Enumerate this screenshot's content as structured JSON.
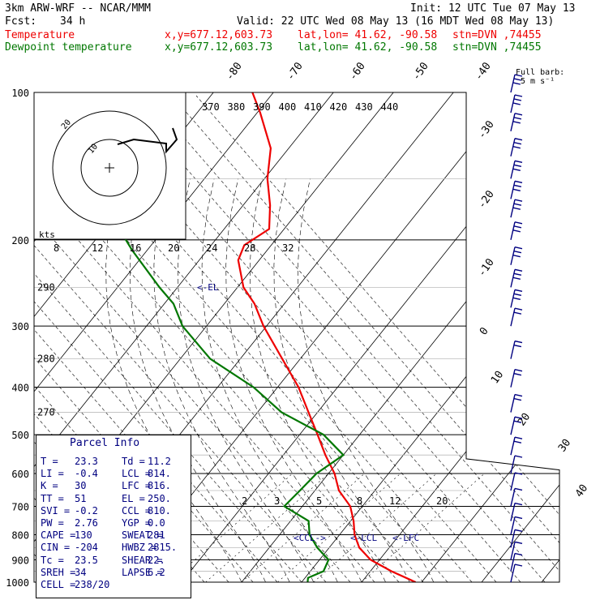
{
  "header": {
    "model": "3km ARW-WRF -- NCAR/MMM",
    "init": "Init: 12 UTC Tue 07 May 13",
    "fcst_label": "Fcst:",
    "fcst_value": "34 h",
    "valid": "Valid: 22 UTC Wed 08 May 13 (16 MDT Wed 08 May 13)"
  },
  "legend": [
    {
      "name": "Temperature",
      "color": "#ee0000",
      "xy": "x,y=677.12,603.73",
      "latlon": "lat,lon= 41.62, -90.58",
      "stn": "stn=DVN ,74455"
    },
    {
      "name": "Dewpoint temperature",
      "color": "#007700",
      "xy": "x,y=677.12,603.73",
      "latlon": "lat,lon= 41.62, -90.58",
      "stn": "stn=DVN ,74455"
    }
  ],
  "wind_barb_legend": {
    "line1": "Full barb:",
    "line2": "5 m s⁻¹"
  },
  "hodograph": {
    "units": "kts",
    "ring_labels": [
      "20",
      "10"
    ]
  },
  "parcel_info": {
    "title": "Parcel Info",
    "rows": [
      {
        "l1": "T",
        "v1": "23.3",
        "l2": "Td",
        "v2": "11.2"
      },
      {
        "l1": "LI",
        "v1": "-0.4",
        "l2": "LCL",
        "v2": "814."
      },
      {
        "l1": "K",
        "v1": "30",
        "l2": "LFC",
        "v2": "816."
      },
      {
        "l1": "TT",
        "v1": "51",
        "l2": "EL",
        "v2": "250."
      },
      {
        "l1": "SVI",
        "v1": "-0.2",
        "l2": "CCL",
        "v2": "810."
      },
      {
        "l1": "PW",
        "v1": "2.76",
        "l2": "YGP",
        "v2": "0.0"
      },
      {
        "l1": "CAPE",
        "v1": "130",
        "l2": "SWEAT",
        "v2": "281"
      },
      {
        "l1": "CIN",
        "v1": "-204",
        "l2": "HWBZ",
        "v2": "2815."
      },
      {
        "l1": "Tc",
        "v1": "23.5",
        "l2": "SHEAR",
        "v2": "22."
      },
      {
        "l1": "SREH",
        "v1": "34",
        "l2": "LAPSE",
        "v2": "6.2"
      },
      {
        "l1": "CELL",
        "v1": "238/20",
        "l2": "",
        "v2": ""
      }
    ]
  },
  "level_markers": {
    "el": "<-EL",
    "ccl": "<CCL->",
    "lcl": "<-LCL",
    "lfc": "<-LFC"
  },
  "chart_data": {
    "type": "line",
    "pressure_ticks": [
      100,
      200,
      300,
      400,
      500,
      600,
      700,
      800,
      900,
      1000
    ],
    "isotherm_labels": [
      "-80",
      "-70",
      "-60",
      "-50",
      "-40",
      "-30",
      "-20",
      "-10",
      "0",
      "10",
      "20",
      "30",
      "40"
    ],
    "theta_e_labels": [
      "370",
      "380",
      "390",
      "400",
      "410",
      "420",
      "430",
      "440"
    ],
    "dry_adiabat_labels": [
      "290",
      "280",
      "270"
    ],
    "dry_adiabat_pressures": [
      250,
      350,
      450
    ],
    "wet_bulb_labels": [
      "8",
      "12",
      "16",
      "20",
      "24",
      "28",
      "32"
    ],
    "mixing_ratio_labels": [
      "2",
      "3",
      "5",
      "8",
      "12",
      "20"
    ],
    "series": [
      {
        "name": "Temperature",
        "color": "#ee0000",
        "points": [
          [
            1000,
            29.0
          ],
          [
            950,
            23.5
          ],
          [
            900,
            18.5
          ],
          [
            850,
            15.0
          ],
          [
            800,
            12.5
          ],
          [
            750,
            10.5
          ],
          [
            700,
            8.0
          ],
          [
            650,
            4.0
          ],
          [
            600,
            1.0
          ],
          [
            550,
            -3.0
          ],
          [
            500,
            -7.0
          ],
          [
            450,
            -11.5
          ],
          [
            400,
            -16.5
          ],
          [
            350,
            -23.0
          ],
          [
            300,
            -30.5
          ],
          [
            270,
            -35.0
          ],
          [
            250,
            -39.0
          ],
          [
            220,
            -43.5
          ],
          [
            205,
            -44.5
          ],
          [
            190,
            -42.5
          ],
          [
            170,
            -45.5
          ],
          [
            150,
            -49.5
          ],
          [
            130,
            -53.0
          ],
          [
            110,
            -59.5
          ],
          [
            100,
            -63.5
          ]
        ]
      },
      {
        "name": "Dewpoint temperature",
        "color": "#007700",
        "points": [
          [
            1000,
            11.0
          ],
          [
            980,
            10.5
          ],
          [
            950,
            12.2
          ],
          [
            900,
            11.5
          ],
          [
            850,
            8.0
          ],
          [
            800,
            5.0
          ],
          [
            750,
            3.0
          ],
          [
            700,
            -3.0
          ],
          [
            650,
            -2.5
          ],
          [
            600,
            -2.0
          ],
          [
            550,
            0.0
          ],
          [
            500,
            -6.0
          ],
          [
            450,
            -16.0
          ],
          [
            400,
            -24.0
          ],
          [
            350,
            -35.0
          ],
          [
            300,
            -44.0
          ],
          [
            270,
            -48.5
          ],
          [
            250,
            -53.0
          ],
          [
            210,
            -62.5
          ],
          [
            190,
            -67.5
          ],
          [
            150,
            -78.0
          ],
          [
            130,
            -84.0
          ],
          [
            115,
            -84.0
          ],
          [
            100,
            -88.0
          ]
        ]
      }
    ]
  },
  "wind_barbs": [
    "barb-100",
    "barb-110",
    "barb-120",
    "barb-135",
    "barb-150",
    "barb-165",
    "barb-180",
    "barb-200",
    "barb-225",
    "barb-250",
    "barb-275",
    "barb-300",
    "barb-350",
    "barb-400",
    "barb-450",
    "barb-500",
    "barb-550",
    "barb-600",
    "barb-650",
    "barb-700",
    "barb-750",
    "barb-800",
    "barb-850",
    "barb-900",
    "barb-950",
    "barb-1000"
  ]
}
